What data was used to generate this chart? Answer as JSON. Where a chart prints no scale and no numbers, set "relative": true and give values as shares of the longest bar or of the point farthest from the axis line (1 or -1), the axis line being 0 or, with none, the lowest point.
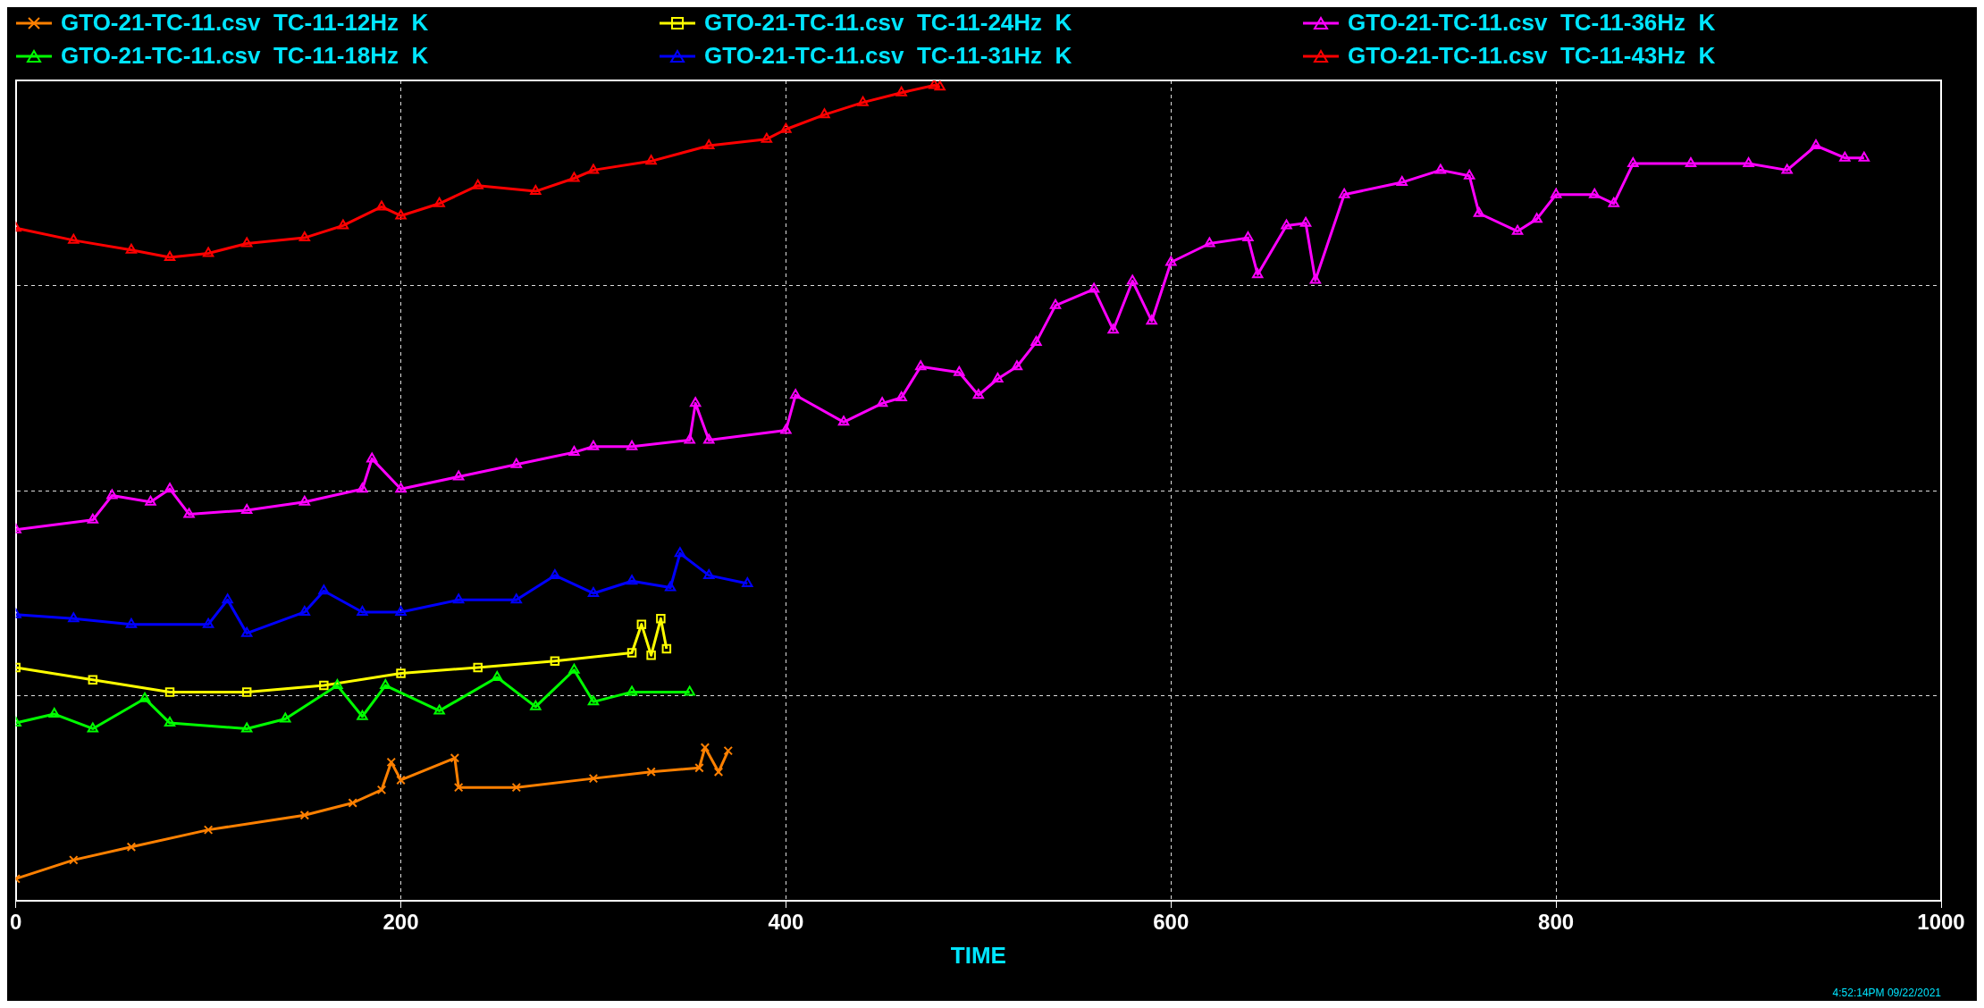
{
  "chart_data": {
    "type": "line",
    "relative": true,
    "xlabel": "TIME",
    "xlim": [
      0,
      1000
    ],
    "xticks": [
      0,
      200,
      400,
      600,
      800,
      1000
    ],
    "grid": true,
    "legend": "top",
    "line_style": "solid",
    "annotations": [
      "4:52:14PM 09/22/2021"
    ],
    "series": [
      {
        "name": "GTO-21-TC-11.csv  TC-11-12Hz  K",
        "color": "#ff8000",
        "marker": "cross",
        "x": [
          0,
          30,
          60,
          100,
          150,
          175,
          190,
          195,
          200,
          228,
          230,
          260,
          300,
          330,
          355,
          358,
          365,
          370
        ],
        "values": [
          0.027,
          0.05,
          0.066,
          0.087,
          0.105,
          0.12,
          0.136,
          0.17,
          0.148,
          0.175,
          0.139,
          0.139,
          0.15,
          0.158,
          0.163,
          0.188,
          0.158,
          0.184
        ]
      },
      {
        "name": "GTO-21-TC-11.csv  TC-11-18Hz  K",
        "color": "#00ff00",
        "marker": "triangle",
        "x": [
          0,
          20,
          40,
          67,
          80,
          120,
          140,
          167,
          180,
          192,
          220,
          250,
          270,
          290,
          300,
          320,
          350
        ],
        "values": [
          0.218,
          0.229,
          0.211,
          0.248,
          0.218,
          0.211,
          0.223,
          0.264,
          0.226,
          0.264,
          0.233,
          0.274,
          0.238,
          0.283,
          0.244,
          0.256,
          0.256
        ]
      },
      {
        "name": "GTO-21-TC-11.csv  TC-11-24Hz  K",
        "color": "#ffff00",
        "marker": "square",
        "x": [
          0,
          40,
          80,
          120,
          160,
          200,
          240,
          280,
          320,
          325,
          330,
          335,
          338
        ],
        "values": [
          0.286,
          0.271,
          0.256,
          0.256,
          0.264,
          0.279,
          0.286,
          0.294,
          0.304,
          0.339,
          0.301,
          0.346,
          0.309
        ]
      },
      {
        "name": "GTO-21-TC-11.csv  TC-11-31Hz  K",
        "color": "#0000ff",
        "marker": "triangle",
        "x": [
          0,
          30,
          60,
          100,
          110,
          120,
          150,
          160,
          180,
          200,
          230,
          260,
          280,
          300,
          320,
          340,
          345,
          360,
          380
        ],
        "values": [
          0.351,
          0.346,
          0.339,
          0.339,
          0.369,
          0.328,
          0.354,
          0.38,
          0.354,
          0.354,
          0.369,
          0.369,
          0.399,
          0.377,
          0.392,
          0.384,
          0.426,
          0.399,
          0.389
        ]
      },
      {
        "name": "GTO-21-TC-11.csv  TC-11-36Hz  K",
        "color": "#ff00ff",
        "marker": "triangle",
        "x": [
          0,
          40,
          50,
          70,
          80,
          90,
          120,
          150,
          180,
          185,
          200,
          230,
          260,
          290,
          300,
          320,
          350,
          353,
          360,
          400,
          405,
          430,
          450,
          460,
          470,
          490,
          500,
          510,
          520,
          530,
          540,
          560,
          570,
          580,
          590,
          600,
          620,
          640,
          645,
          660,
          670,
          675,
          690,
          720,
          740,
          755,
          760,
          780,
          790,
          800,
          820,
          830,
          840,
          870,
          900,
          920,
          935,
          950,
          960
        ],
        "values": [
          0.455,
          0.467,
          0.497,
          0.489,
          0.505,
          0.474,
          0.479,
          0.489,
          0.505,
          0.542,
          0.505,
          0.52,
          0.535,
          0.55,
          0.557,
          0.557,
          0.565,
          0.61,
          0.565,
          0.577,
          0.62,
          0.587,
          0.61,
          0.617,
          0.655,
          0.648,
          0.62,
          0.64,
          0.655,
          0.685,
          0.73,
          0.75,
          0.7,
          0.76,
          0.711,
          0.783,
          0.806,
          0.813,
          0.768,
          0.828,
          0.831,
          0.761,
          0.866,
          0.881,
          0.896,
          0.889,
          0.843,
          0.821,
          0.836,
          0.866,
          0.866,
          0.855,
          0.904,
          0.904,
          0.904,
          0.896,
          0.926,
          0.911,
          0.911
        ]
      },
      {
        "name": "GTO-21-TC-11.csv  TC-11-43Hz  K",
        "color": "#ff0000",
        "marker": "triangle",
        "x": [
          0,
          30,
          60,
          80,
          100,
          120,
          150,
          170,
          190,
          200,
          220,
          240,
          270,
          290,
          300,
          330,
          360,
          390,
          400,
          420,
          440,
          460,
          477,
          480
        ],
        "values": [
          0.825,
          0.81,
          0.798,
          0.789,
          0.794,
          0.806,
          0.813,
          0.828,
          0.851,
          0.84,
          0.855,
          0.877,
          0.87,
          0.886,
          0.896,
          0.907,
          0.926,
          0.934,
          0.946,
          0.964,
          0.979,
          0.991,
          1,
          0.998
        ]
      }
    ]
  }
}
